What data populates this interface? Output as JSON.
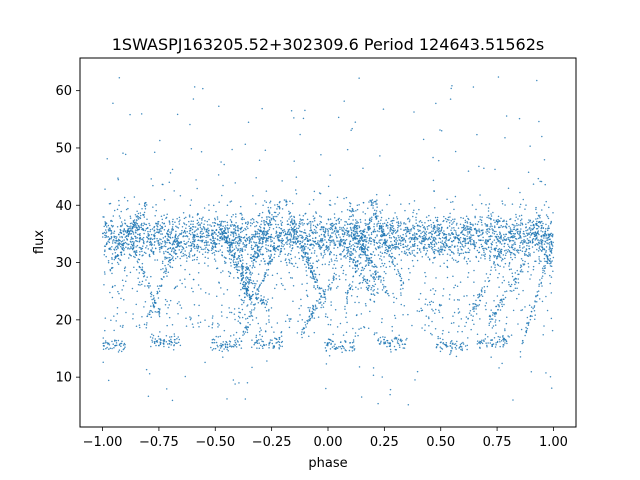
{
  "chart_data": {
    "type": "scatter",
    "title": "1SWASPJ163205.52+302309.6 Period 124643.51562s",
    "xlabel": "phase",
    "ylabel": "flux",
    "xlim": [
      -1.1,
      1.1
    ],
    "ylim": [
      1.3,
      65.7
    ],
    "xticks": [
      -1.0,
      -0.75,
      -0.5,
      -0.25,
      0.0,
      0.25,
      0.5,
      0.75,
      1.0
    ],
    "xtick_labels": [
      "−1.00",
      "−0.75",
      "−0.50",
      "−0.25",
      "0.00",
      "0.25",
      "0.50",
      "0.75",
      "1.00"
    ],
    "yticks": [
      10,
      20,
      30,
      40,
      50,
      60
    ],
    "ytick_labels": [
      "10",
      "20",
      "30",
      "40",
      "50",
      "60"
    ],
    "grid": false,
    "legend": "none",
    "series_color": "#1f77b4",
    "baseline_flux": 34.5,
    "baseline_scatter": 2.0,
    "low_flux_levels": [
      15.5,
      16.0
    ],
    "high_outlier_max": 62.5,
    "low_outlier_min": 5.0,
    "phase_range": [
      -1.0,
      1.0
    ]
  }
}
